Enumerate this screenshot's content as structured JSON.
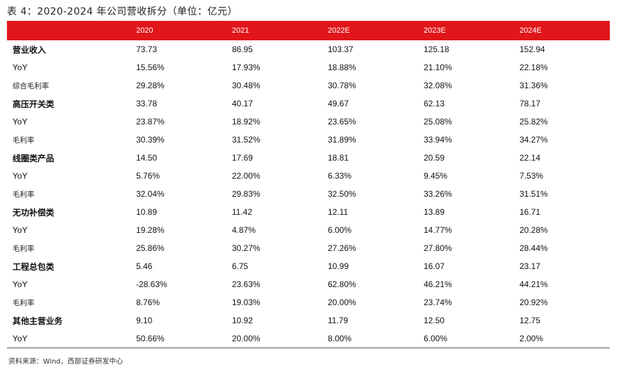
{
  "title": "表 4：2020-2024 年公司营收拆分（单位：亿元）",
  "columns": [
    "",
    "2020",
    "2021",
    "2022E",
    "2023E",
    "2024E"
  ],
  "rows": [
    {
      "label": "营业收入",
      "kind": "main",
      "values": [
        "73.73",
        "86.95",
        "103.37",
        "125.18",
        "152.94"
      ]
    },
    {
      "label": "YoY",
      "kind": "yoy",
      "values": [
        "15.56%",
        "17.93%",
        "18.88%",
        "21.10%",
        "22.18%"
      ]
    },
    {
      "label": "综合毛利率",
      "kind": "sub",
      "values": [
        "29.28%",
        "30.48%",
        "30.78%",
        "32.08%",
        "31.36%"
      ]
    },
    {
      "label": "高压开关类",
      "kind": "main",
      "values": [
        "33.78",
        "40.17",
        "49.67",
        "62.13",
        "78.17"
      ]
    },
    {
      "label": "YoY",
      "kind": "yoy",
      "values": [
        "23.87%",
        "18.92%",
        "23.65%",
        "25.08%",
        "25.82%"
      ]
    },
    {
      "label": "毛利率",
      "kind": "sub",
      "values": [
        "30.39%",
        "31.52%",
        "31.89%",
        "33.94%",
        "34.27%"
      ]
    },
    {
      "label": "线圈类产品",
      "kind": "main",
      "values": [
        "14.50",
        "17.69",
        "18.81",
        "20.59",
        "22.14"
      ]
    },
    {
      "label": "YoY",
      "kind": "yoy",
      "values": [
        "5.76%",
        "22.00%",
        "6.33%",
        "9.45%",
        "7.53%"
      ]
    },
    {
      "label": "毛利率",
      "kind": "sub",
      "values": [
        "32.04%",
        "29.83%",
        "32.50%",
        "33.26%",
        "31.51%"
      ]
    },
    {
      "label": "无功补偿类",
      "kind": "main",
      "values": [
        "10.89",
        "11.42",
        "12.11",
        "13.89",
        "16.71"
      ]
    },
    {
      "label": "YoY",
      "kind": "yoy",
      "values": [
        "19.28%",
        "4.87%",
        "6.00%",
        "14.77%",
        "20.28%"
      ]
    },
    {
      "label": "毛利率",
      "kind": "sub",
      "values": [
        "25.86%",
        "30.27%",
        "27.26%",
        "27.80%",
        "28.44%"
      ]
    },
    {
      "label": "工程总包类",
      "kind": "main",
      "values": [
        "5.46",
        "6.75",
        "10.99",
        "16.07",
        "23.17"
      ]
    },
    {
      "label": "YoY",
      "kind": "yoy",
      "values": [
        "-28.63%",
        "23.63%",
        "62.80%",
        "46.21%",
        "44.21%"
      ]
    },
    {
      "label": "毛利率",
      "kind": "sub",
      "values": [
        "8.76%",
        "19.03%",
        "20.00%",
        "23.74%",
        "20.92%"
      ]
    },
    {
      "label": "其他主营业务",
      "kind": "main",
      "values": [
        "9.10",
        "10.92",
        "11.79",
        "12.50",
        "12.75"
      ]
    },
    {
      "label": "YoY",
      "kind": "yoy",
      "values": [
        "50.66%",
        "20.00%",
        "8.00%",
        "6.00%",
        "2.00%"
      ]
    }
  ],
  "source": "资料来源：Wind，西部证券研发中心",
  "colors": {
    "header_bg": "#e0161b",
    "header_text": "#ffffff"
  }
}
